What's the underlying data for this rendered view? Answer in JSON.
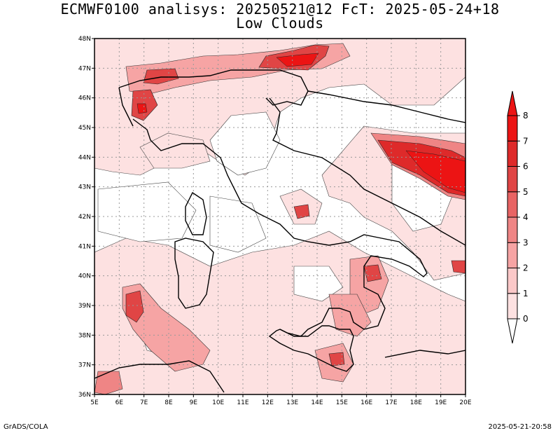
{
  "title": {
    "line1": "ECMWF0100 analisys: 20250521@12 FcT: 2025-05-24+18",
    "line2": "Low Clouds"
  },
  "map": {
    "lon_range": [
      5,
      20
    ],
    "lat_range": [
      36,
      48
    ],
    "x_tick_labels": [
      "5E",
      "6E",
      "7E",
      "8E",
      "9E",
      "10E",
      "11E",
      "12E",
      "13E",
      "14E",
      "15E",
      "16E",
      "17E",
      "18E",
      "19E",
      "20E"
    ],
    "y_tick_labels": [
      "36N",
      "37N",
      "38N",
      "39N",
      "40N",
      "41N",
      "42N",
      "43N",
      "44N",
      "45N",
      "46N",
      "47N",
      "48N"
    ],
    "grid": "dotted"
  },
  "colorbar": {
    "labels": [
      "0",
      "1",
      "2",
      "3",
      "4",
      "5",
      "6",
      "7",
      "8"
    ],
    "colors": [
      "#ffffff",
      "#fde1e1",
      "#fbc8c8",
      "#f6a4a4",
      "#ef8585",
      "#e86464",
      "#e04545",
      "#de2a2a",
      "#ec1414"
    ]
  },
  "footer": {
    "left": "GrADS/COLA",
    "right": "2025-05-21-20:58"
  }
}
